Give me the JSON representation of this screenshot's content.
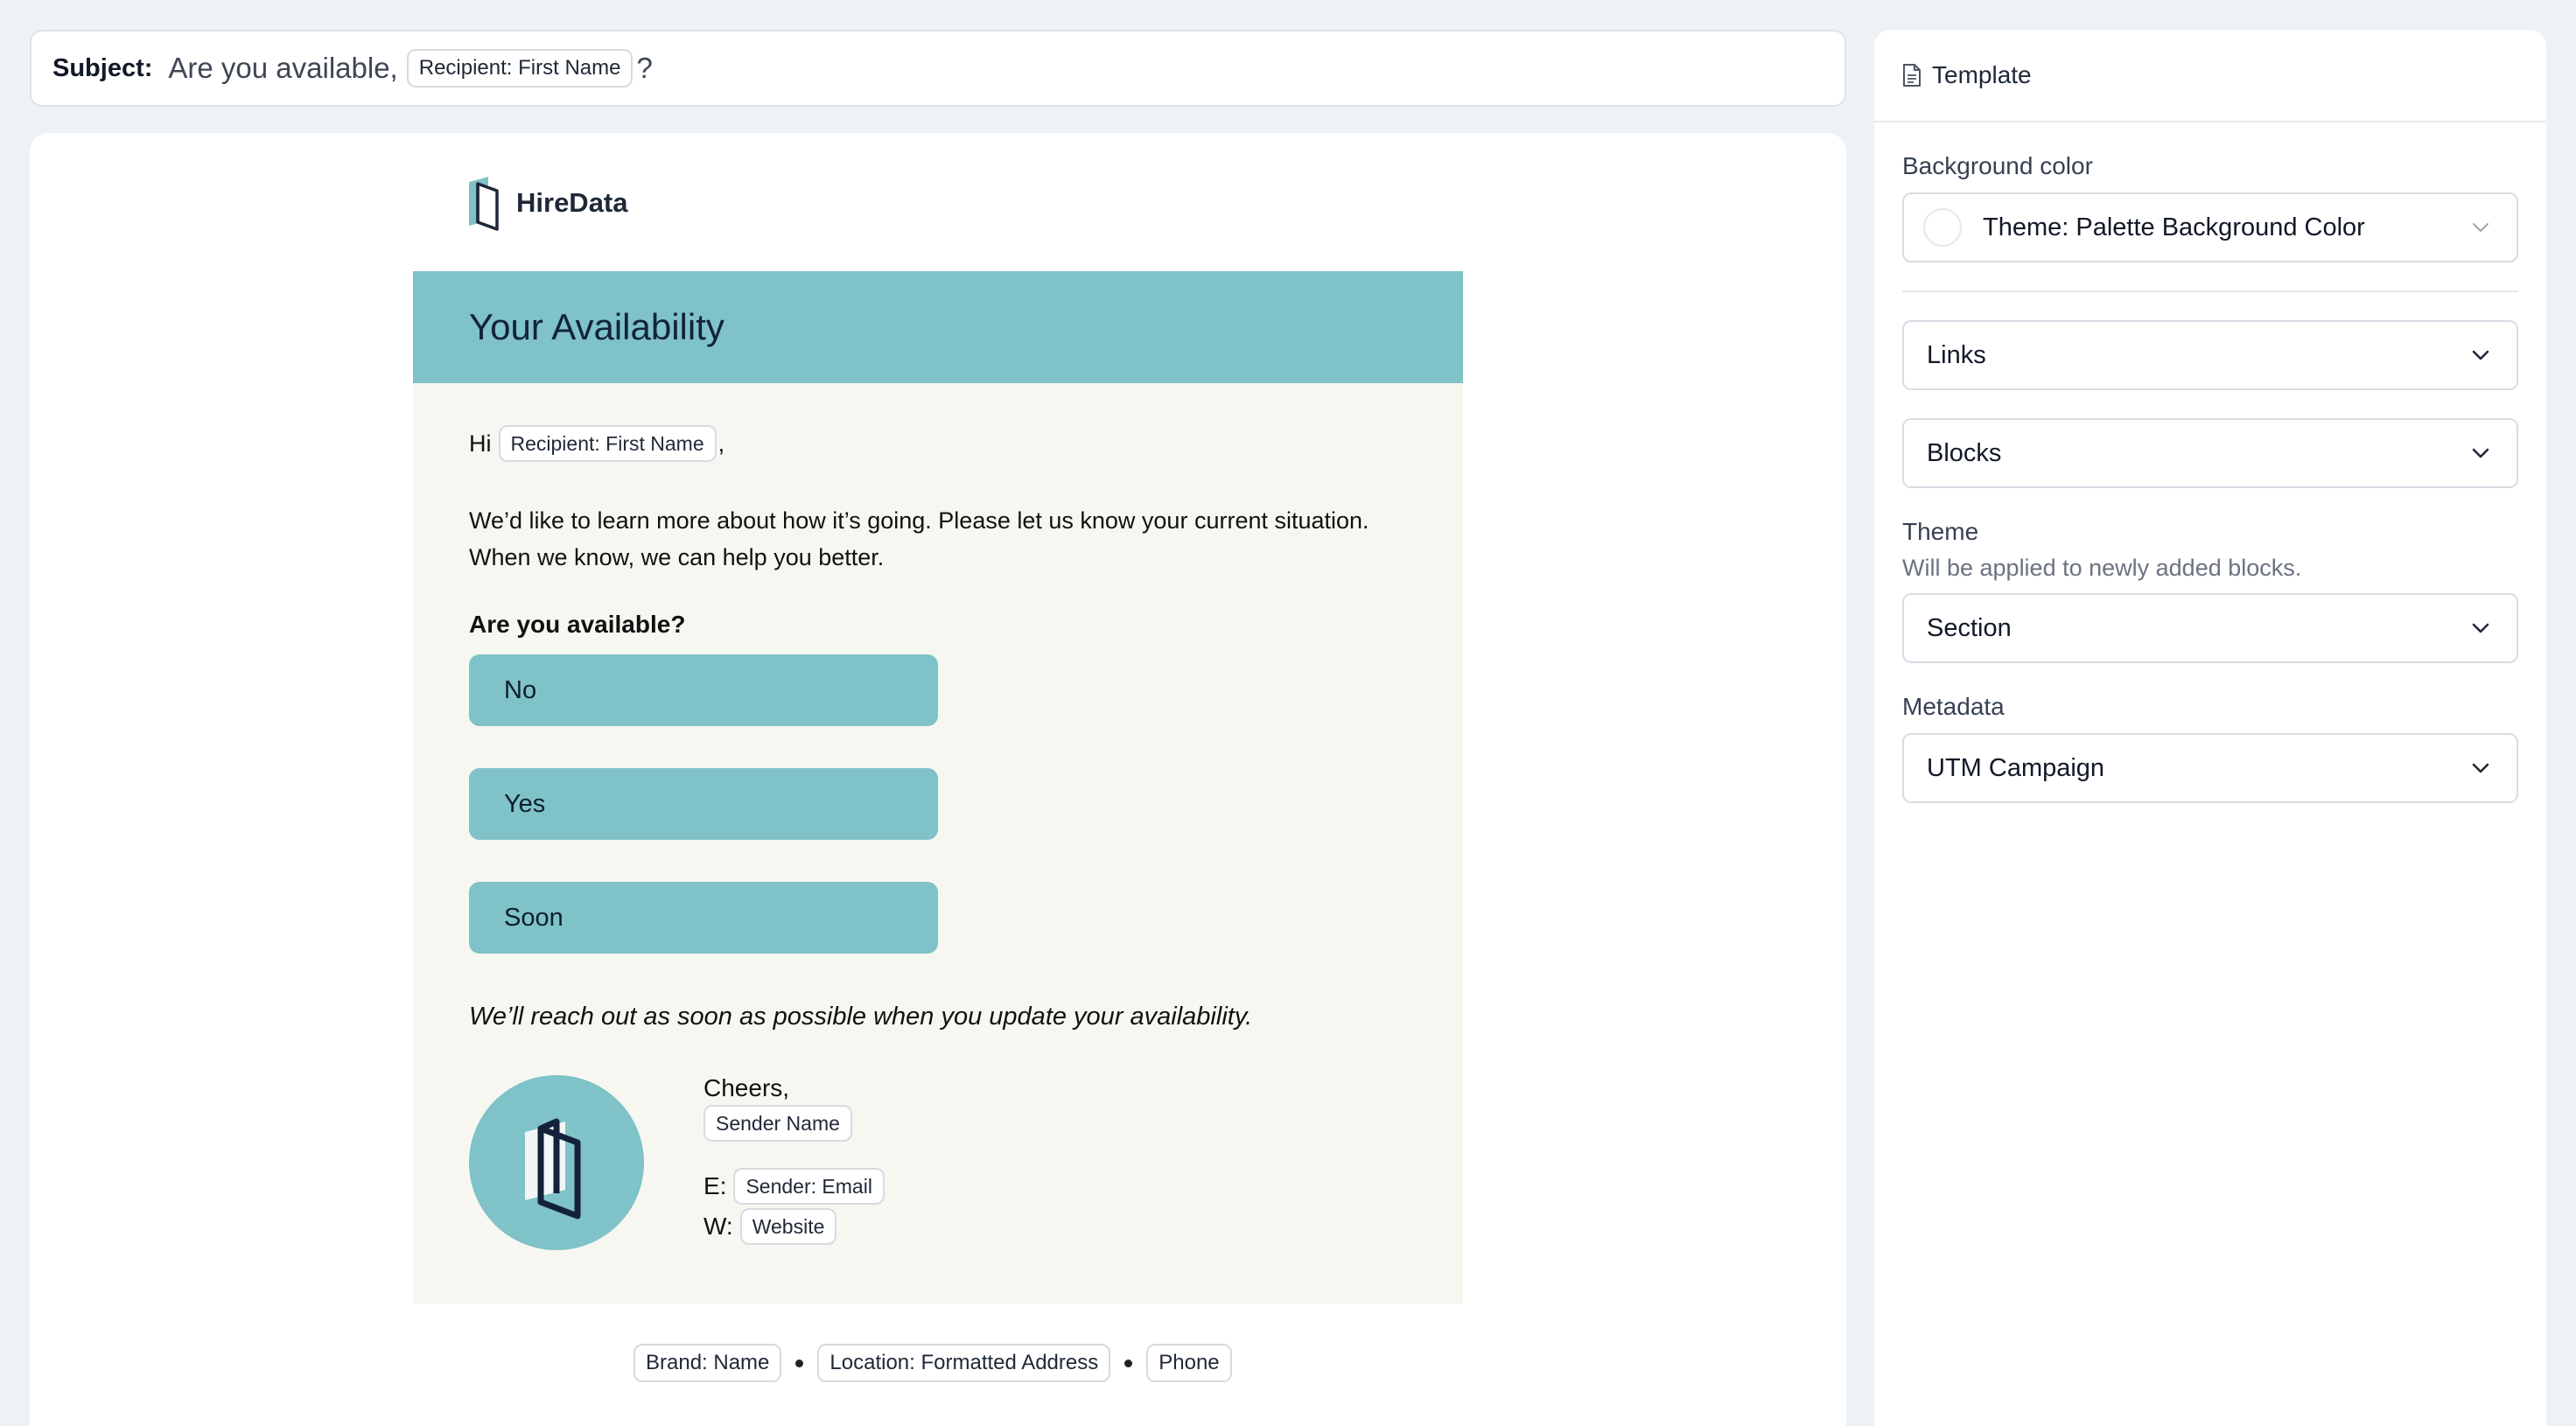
{
  "subject": {
    "label": "Subject:",
    "text": "Are you available,",
    "tag": "Recipient: First Name",
    "suffix": "?"
  },
  "email": {
    "logo_text": "HireData",
    "title": "Your Availability",
    "greeting_hi": "Hi",
    "greeting_tag": "Recipient: First Name",
    "greeting_suffix": ",",
    "paragraph": "We’d like to learn more about how it’s going. Please let us know your current situation. When we know, we can help you better.",
    "question": "Are you available?",
    "answers": [
      "No",
      "Yes",
      "Soon"
    ],
    "note": "We’ll reach out as soon as possible when you update your availability.",
    "signature": {
      "greeting": "Cheers,",
      "name_tag": "Sender Name",
      "email_key": "E:",
      "email_tag": "Sender: Email",
      "web_key": "W:",
      "web_tag": "Website"
    },
    "footer": [
      "Brand: Name",
      "Location: Formatted Address",
      "Phone"
    ]
  },
  "panel": {
    "title": "Template",
    "title_icon": "document-icon",
    "background_color_label": "Background color",
    "background_color_value": "Theme: Palette Background Color",
    "links_label": "Links",
    "blocks_label": "Blocks",
    "theme_label": "Theme",
    "theme_hint": "Will be applied to newly added blocks.",
    "theme_value": "Section",
    "metadata_label": "Metadata",
    "metadata_value": "UTM Campaign"
  },
  "colors": {
    "accent": "#7fc2c7",
    "page_bg": "#eef2f6",
    "card_bg": "#f7f7f2",
    "logo_dark": "#1d2737"
  }
}
